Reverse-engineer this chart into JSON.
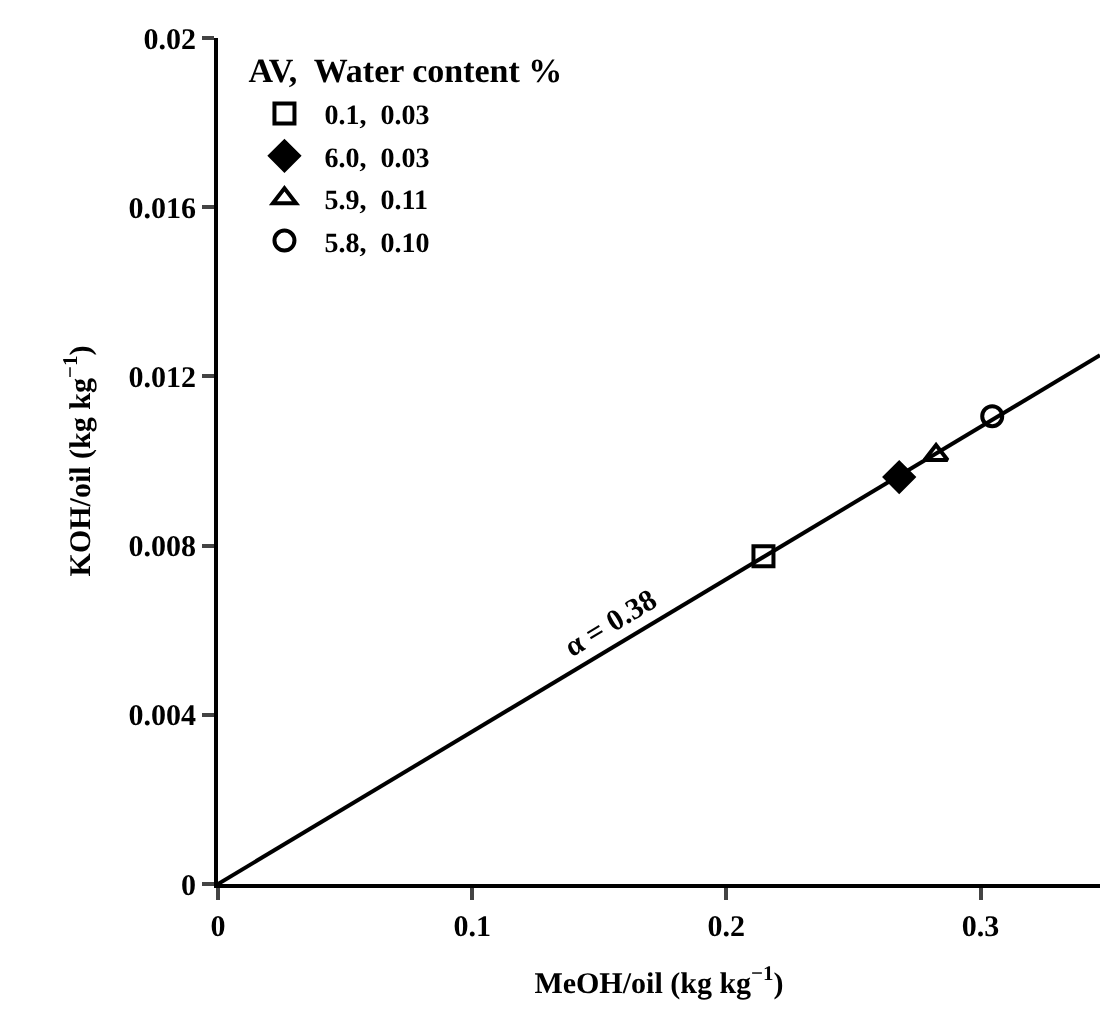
{
  "chart_data": {
    "type": "scatter",
    "xlabel": "MeOH/oil (kg kg$^{−1}$)",
    "ylabel": "KOH/oil (kg kg$^{−1}$)",
    "legend_title": "AV,  Water content %",
    "xlim": [
      0,
      0.347
    ],
    "ylim": [
      0,
      0.02
    ],
    "xticks": [
      0,
      0.1,
      0.2,
      0.3
    ],
    "yticks": [
      0,
      0.004,
      0.008,
      0.012,
      0.016,
      0.02
    ],
    "legend": "top left",
    "series": [
      {
        "type": "line",
        "x": [
          0,
          0.347
        ],
        "values": [
          0,
          0.0125
        ],
        "color": "#000000",
        "marker": "none",
        "line_style": "solid"
      },
      {
        "name": "0.1,  0.03",
        "x": [
          0.2146
        ],
        "values": [
          0.00775
        ],
        "color": "#000000",
        "marker": "square"
      },
      {
        "name": "6.0,  0.03",
        "x": [
          0.268
        ],
        "values": [
          0.00962
        ],
        "color": "#000000",
        "marker": "diamond"
      },
      {
        "name": "5.9,  0.11",
        "x": [
          0.2825
        ],
        "values": [
          0.01014
        ],
        "color": "#000000",
        "marker": "triangle"
      },
      {
        "name": "5.8,  0.10",
        "x": [
          0.3046
        ],
        "values": [
          0.01106
        ],
        "color": "#000000",
        "marker": "circle"
      }
    ],
    "annotations": [
      {
        "text": "α = 0.38",
        "x": 0.155,
        "y": 0.0056
      }
    ]
  }
}
